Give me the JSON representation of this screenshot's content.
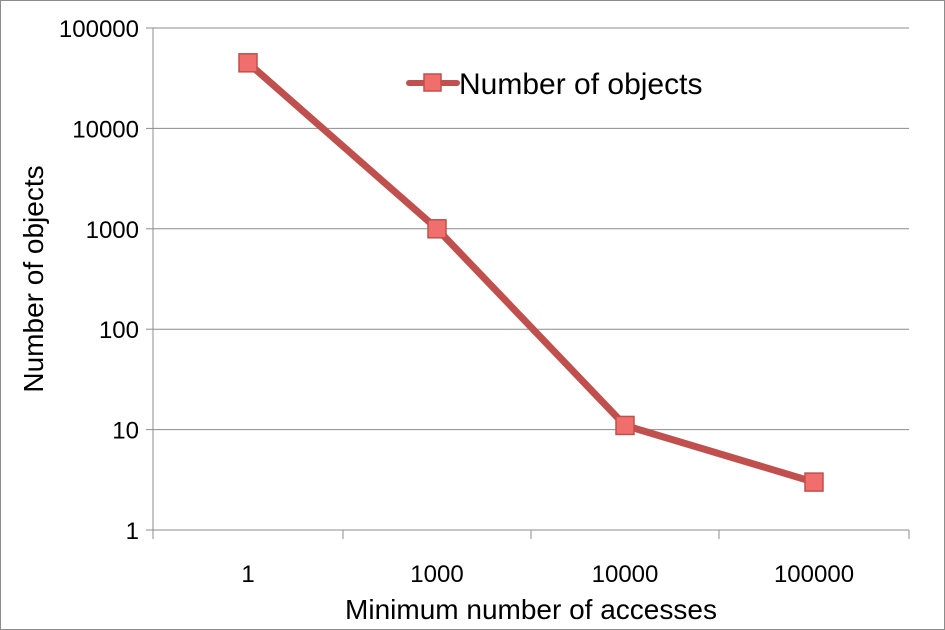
{
  "chart_data": {
    "type": "line",
    "y_scale": "log",
    "categories": [
      "1",
      "1000",
      "10000",
      "100000"
    ],
    "series": [
      {
        "name": "Number of objects",
        "values": [
          45000,
          1000,
          11,
          3
        ],
        "color": "#c0504d",
        "marker_fill": "#f06f6d",
        "marker": "square"
      }
    ],
    "xlabel": "Minimum number of accesses",
    "ylabel": "Number of objects",
    "ylim": [
      1,
      100000
    ],
    "y_ticks": [
      "1",
      "10",
      "100",
      "1000",
      "10000",
      "100000"
    ],
    "grid": "horizontal",
    "legend_position": "top-right"
  }
}
